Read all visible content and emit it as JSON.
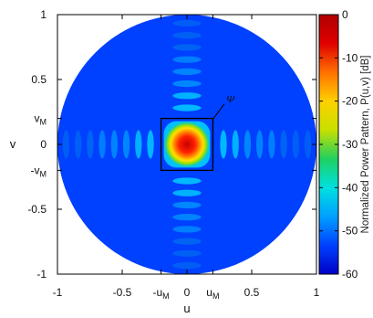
{
  "chart_data": {
    "type": "heatmap",
    "title": "",
    "xlabel": "u",
    "ylabel": "v",
    "xlim": [
      -1,
      1
    ],
    "ylim": [
      -1,
      1
    ],
    "x_ticks": [
      {
        "value": -1,
        "label": "-1"
      },
      {
        "value": -0.5,
        "label": "-0.5"
      },
      {
        "value": -0.2,
        "label": "-u",
        "sub": "M"
      },
      {
        "value": 0,
        "label": "0"
      },
      {
        "value": 0.2,
        "label": "u",
        "sub": "M"
      },
      {
        "value": 0.5,
        "label": "0.5"
      },
      {
        "value": 1,
        "label": "1"
      }
    ],
    "y_ticks": [
      {
        "value": 1,
        "label": "1"
      },
      {
        "value": 0.5,
        "label": "0.5"
      },
      {
        "value": 0.2,
        "label": "v",
        "sub": "M"
      },
      {
        "value": 0,
        "label": "0"
      },
      {
        "value": -0.2,
        "label": "-v",
        "sub": "M"
      },
      {
        "value": -0.5,
        "label": "-0.5"
      },
      {
        "value": -1,
        "label": "-1"
      }
    ],
    "colorbar": {
      "label": "Normalized Power Pattern, P(u,v) [dB]",
      "range": [
        -60,
        0
      ],
      "ticks": [
        {
          "value": 0,
          "label": "0"
        },
        {
          "value": -10,
          "label": "-10"
        },
        {
          "value": -20,
          "label": "-20"
        },
        {
          "value": -30,
          "label": "-30"
        },
        {
          "value": -40,
          "label": "-40"
        },
        {
          "value": -50,
          "label": "-50"
        },
        {
          "value": -60,
          "label": "-60"
        }
      ],
      "colors": [
        "#0000c8",
        "#0040ff",
        "#00a0ff",
        "#00e0e0",
        "#20d060",
        "#c8e000",
        "#ffd000",
        "#ff7000",
        "#e00000",
        "#b00000"
      ]
    },
    "visible_region": "unit circle u^2+v^2<=1",
    "main_lobe_box": {
      "u_range": [
        -0.2,
        0.2
      ],
      "v_range": [
        -0.2,
        0.2
      ]
    },
    "annotation": {
      "label": "Ψ",
      "u": 0.31,
      "v": 0.34
    },
    "sidelobe_axes": [
      "u",
      "v"
    ],
    "sidelobe_count_per_side": 8
  }
}
